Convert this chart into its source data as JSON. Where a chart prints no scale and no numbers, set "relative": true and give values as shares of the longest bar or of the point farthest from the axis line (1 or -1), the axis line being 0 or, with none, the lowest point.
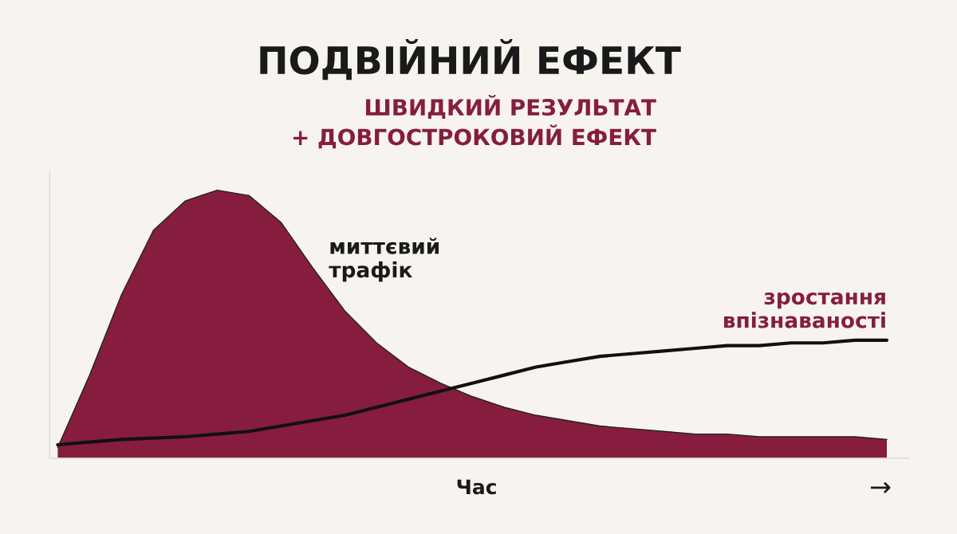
{
  "chart_data": {
    "type": "area",
    "title": "ПОДВІЙНИЙ ЕФЕКТ",
    "subtitle": "ШВИДКИЙ РЕЗУЛЬТАТ\n+ ДОВГОСТРОКОВИЙ ЕФЕКТ",
    "xlabel": "Час",
    "annotations": [
      "миттєвий\nтрафік",
      "зростання\nвпізнаваності",
      "→"
    ],
    "relative": true,
    "grid": false,
    "legend": false,
    "categories": [
      null,
      null,
      null,
      null,
      null,
      null,
      null,
      null,
      null,
      null,
      null,
      null,
      null,
      null,
      null,
      null,
      null,
      null,
      null,
      null,
      null,
      null,
      null,
      null,
      null,
      null,
      null
    ],
    "series": [
      {
        "type": "area",
        "color": "#861d3e",
        "values": [
          0.04,
          0.31,
          0.61,
          0.85,
          0.96,
          1.0,
          0.98,
          0.88,
          0.71,
          0.55,
          0.43,
          0.34,
          0.28,
          0.23,
          0.19,
          0.16,
          0.14,
          0.12,
          0.11,
          0.1,
          0.09,
          0.09,
          0.08,
          0.08,
          0.08,
          0.08,
          0.07
        ]
      },
      {
        "type": "line",
        "color": "#111111",
        "values": [
          0.05,
          0.06,
          0.07,
          0.075,
          0.08,
          0.09,
          0.1,
          0.12,
          0.14,
          0.16,
          0.19,
          0.22,
          0.25,
          0.28,
          0.31,
          0.34,
          0.36,
          0.38,
          0.39,
          0.4,
          0.41,
          0.42,
          0.42,
          0.43,
          0.43,
          0.44,
          0.44
        ]
      }
    ]
  }
}
